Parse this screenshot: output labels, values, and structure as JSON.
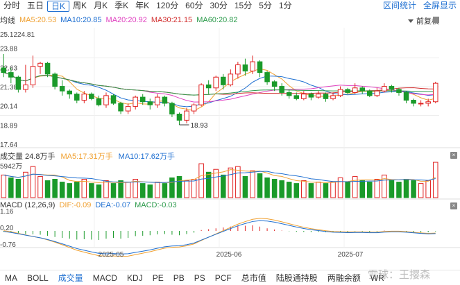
{
  "top_tabs": [
    "分时",
    "五日",
    "日K",
    "周K",
    "月K",
    "季K",
    "年K",
    "120分",
    "60分",
    "30分",
    "15分",
    "5分",
    "1分"
  ],
  "active_tab": "日K",
  "top_right": {
    "interval_stats": "区间统计",
    "fullscreen": "全屏显示"
  },
  "ma_legend": {
    "label": "均线",
    "ma5": "MA5:20.53",
    "ma10": "MA10:20.85",
    "ma20": "MA20:20.92",
    "ma30": "MA30:21.15",
    "ma60": "MA60:20.82"
  },
  "adjust": "前复权",
  "price_axis": [
    "25.1224.81",
    "23.88",
    "22.63",
    "21.38",
    "20.14",
    "18.89",
    "17.64"
  ],
  "price_labels": {
    "high": "25.1224.81",
    "low_marker": "18.93"
  },
  "volume_legend": {
    "label": "成交量 24.8万手",
    "ma5": "MA5:17.31万手",
    "ma10": "MA10:17.62万手",
    "axis_top": "5942万"
  },
  "macd_legend": {
    "label": "MACD (12,26,9)",
    "dif": "DIF:-0.09",
    "dea": "DEA:-0.07",
    "macd": "MACD:-0.03",
    "axis": [
      "1.16",
      "0.20",
      "-0.76"
    ]
  },
  "date_labels": [
    "2025-05",
    "2025-06",
    "2025-07"
  ],
  "bottom_tabs": [
    "MA",
    "BOLL",
    "成交量",
    "MACD",
    "KDJ",
    "PE",
    "PB",
    "PS",
    "PCF",
    "总市值",
    "陆股通持股",
    "两融余额",
    "WR"
  ],
  "active_bottom_tab": "成交量",
  "watermark": "雪球：王撄森",
  "colors": {
    "up": "#e02020",
    "down": "#1a9a2a",
    "ma5": "#f0a030",
    "ma10": "#1e6fd1",
    "ma20": "#e040c0",
    "ma30": "#d23030",
    "ma60": "#2a9a4a",
    "accent": "#1e6fd1"
  },
  "chart_data": {
    "type": "candlestick",
    "candles": [
      [
        22.6,
        22.3,
        23.5,
        22.0
      ],
      [
        22.3,
        22.0,
        22.6,
        21.6
      ],
      [
        22.0,
        21.2,
        22.1,
        21.0
      ],
      [
        21.2,
        21.5,
        22.8,
        21.0
      ],
      [
        21.5,
        22.7,
        23.4,
        21.3
      ],
      [
        22.7,
        22.9,
        23.0,
        22.2
      ],
      [
        22.9,
        22.2,
        23.0,
        22.0
      ],
      [
        22.2,
        21.4,
        22.3,
        21.2
      ],
      [
        21.4,
        21.1,
        21.8,
        20.8
      ],
      [
        21.1,
        20.9,
        21.2,
        20.6
      ],
      [
        20.9,
        20.5,
        21.0,
        20.3
      ],
      [
        20.5,
        20.9,
        21.1,
        20.3
      ],
      [
        20.9,
        20.6,
        21.0,
        20.5
      ],
      [
        20.6,
        20.2,
        20.8,
        20.1
      ],
      [
        20.2,
        20.8,
        21.0,
        20.0
      ],
      [
        20.8,
        20.3,
        20.9,
        20.2
      ],
      [
        20.3,
        19.8,
        20.4,
        19.6
      ],
      [
        19.8,
        20.1,
        20.3,
        19.6
      ],
      [
        20.1,
        20.7,
        20.8,
        19.9
      ],
      [
        20.7,
        20.4,
        20.9,
        20.2
      ],
      [
        20.4,
        20.2,
        20.6,
        19.9
      ],
      [
        20.2,
        20.7,
        20.9,
        20.0
      ],
      [
        20.7,
        20.3,
        20.8,
        20.1
      ],
      [
        20.3,
        19.6,
        20.4,
        19.4
      ],
      [
        19.6,
        19.2,
        19.7,
        18.9
      ],
      [
        19.2,
        19.8,
        20.0,
        19.0
      ],
      [
        19.8,
        20.2,
        20.3,
        19.6
      ],
      [
        20.2,
        21.5,
        21.6,
        20.1
      ],
      [
        21.5,
        21.3,
        21.8,
        20.9
      ],
      [
        21.3,
        22.0,
        22.1,
        21.1
      ],
      [
        22.0,
        21.5,
        22.2,
        21.2
      ],
      [
        21.5,
        22.2,
        22.5,
        21.4
      ],
      [
        22.2,
        22.8,
        23.0,
        21.9
      ],
      [
        22.8,
        22.4,
        23.2,
        22.1
      ],
      [
        22.4,
        23.0,
        23.4,
        22.2
      ],
      [
        23.0,
        22.3,
        23.1,
        22.0
      ],
      [
        22.3,
        21.7,
        22.4,
        21.5
      ],
      [
        21.7,
        21.4,
        21.8,
        21.1
      ],
      [
        21.4,
        21.0,
        21.6,
        20.8
      ],
      [
        21.0,
        20.8,
        21.2,
        20.6
      ],
      [
        20.8,
        20.6,
        21.0,
        20.5
      ],
      [
        20.6,
        20.9,
        21.1,
        20.5
      ],
      [
        20.9,
        20.7,
        21.0,
        20.5
      ],
      [
        20.7,
        20.9,
        21.1,
        20.6
      ],
      [
        20.9,
        20.6,
        21.0,
        20.4
      ],
      [
        20.6,
        20.8,
        21.0,
        20.5
      ],
      [
        20.8,
        21.2,
        21.4,
        20.7
      ],
      [
        21.2,
        21.0,
        21.3,
        20.9
      ],
      [
        21.0,
        21.3,
        21.6,
        20.9
      ],
      [
        21.3,
        21.1,
        21.4,
        20.9
      ],
      [
        21.1,
        20.8,
        21.2,
        20.7
      ],
      [
        20.8,
        21.1,
        21.3,
        20.7
      ],
      [
        21.1,
        21.4,
        21.6,
        21.0
      ],
      [
        21.4,
        21.2,
        21.5,
        21.0
      ],
      [
        21.2,
        21.0,
        21.3,
        20.8
      ],
      [
        21.0,
        20.5,
        21.1,
        20.3
      ],
      [
        20.5,
        20.3,
        20.6,
        20.1
      ],
      [
        20.3,
        20.3,
        20.5,
        20.1
      ],
      [
        20.3,
        20.4,
        20.6,
        20.1
      ],
      [
        20.4,
        21.6,
        21.7,
        20.3
      ]
    ],
    "volumes": [
      [
        16,
        0
      ],
      [
        14,
        1
      ],
      [
        13,
        1
      ],
      [
        18,
        0
      ],
      [
        22,
        0
      ],
      [
        15,
        0
      ],
      [
        12,
        1
      ],
      [
        13,
        1
      ],
      [
        11,
        1
      ],
      [
        10,
        1
      ],
      [
        11,
        1
      ],
      [
        13,
        0
      ],
      [
        10,
        1
      ],
      [
        9,
        1
      ],
      [
        12,
        0
      ],
      [
        10,
        1
      ],
      [
        12,
        1
      ],
      [
        11,
        0
      ],
      [
        13,
        0
      ],
      [
        10,
        1
      ],
      [
        9,
        1
      ],
      [
        11,
        0
      ],
      [
        10,
        1
      ],
      [
        14,
        1
      ],
      [
        15,
        1
      ],
      [
        12,
        0
      ],
      [
        13,
        0
      ],
      [
        24,
        0
      ],
      [
        18,
        1
      ],
      [
        20,
        0
      ],
      [
        16,
        1
      ],
      [
        21,
        0
      ],
      [
        22,
        0
      ],
      [
        15,
        1
      ],
      [
        19,
        0
      ],
      [
        17,
        1
      ],
      [
        14,
        1
      ],
      [
        13,
        1
      ],
      [
        12,
        1
      ],
      [
        11,
        1
      ],
      [
        10,
        1
      ],
      [
        12,
        0
      ],
      [
        10,
        1
      ],
      [
        11,
        0
      ],
      [
        10,
        1
      ],
      [
        11,
        0
      ],
      [
        14,
        0
      ],
      [
        11,
        1
      ],
      [
        15,
        0
      ],
      [
        12,
        1
      ],
      [
        11,
        1
      ],
      [
        13,
        0
      ],
      [
        16,
        0
      ],
      [
        12,
        1
      ],
      [
        11,
        1
      ],
      [
        13,
        1
      ],
      [
        12,
        1
      ],
      [
        10,
        0
      ],
      [
        12,
        0
      ],
      [
        25,
        0
      ]
    ],
    "macd_bars": [
      -0.05,
      -0.1,
      -0.15,
      -0.18,
      -0.2,
      -0.22,
      -0.28,
      -0.35,
      -0.4,
      -0.45,
      -0.5,
      -0.48,
      -0.5,
      -0.52,
      -0.45,
      -0.4,
      -0.45,
      -0.4,
      -0.3,
      -0.28,
      -0.25,
      -0.2,
      -0.18,
      -0.22,
      -0.25,
      -0.18,
      -0.1,
      0.05,
      0.1,
      0.15,
      0.2,
      0.25,
      0.3,
      0.3,
      0.32,
      0.25,
      0.15,
      0.08,
      0.02,
      -0.02,
      -0.05,
      -0.06,
      -0.07,
      -0.06,
      -0.08,
      -0.07,
      -0.04,
      -0.05,
      -0.02,
      -0.03,
      -0.05,
      -0.03,
      0.02,
      0.0,
      -0.02,
      -0.05,
      -0.08,
      -0.09,
      -0.08,
      -0.03
    ],
    "ylim_price": [
      17.64,
      25.12
    ],
    "ylim_macd": [
      -0.76,
      1.16
    ],
    "x_ticks": [
      "2025-05",
      "2025-06",
      "2025-07"
    ]
  }
}
